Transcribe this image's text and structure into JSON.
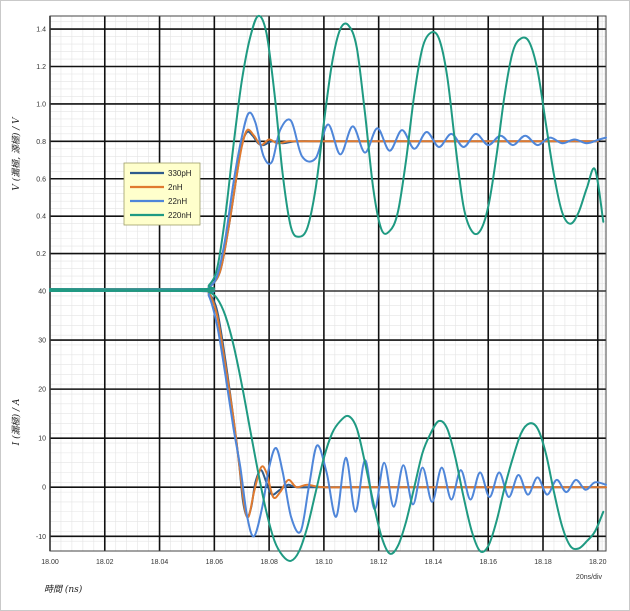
{
  "chart_data": [
    {
      "type": "line",
      "ylabel": "V (漏極, 源極) / V",
      "xlim": [
        18.0,
        18.203
      ],
      "ylim": [
        0,
        1.47
      ],
      "yticks": [
        0.2,
        0.4,
        0.6,
        0.8,
        1.0,
        1.2,
        1.4
      ],
      "ytick_labels": [
        "0.2",
        "0.4",
        "0.6",
        "0.8",
        "1.0",
        "1.2",
        "1.4"
      ],
      "grid": true,
      "legend_position": "center-left",
      "series": [
        {
          "name": "330pH",
          "color": "#2e5b8c",
          "x": [
            18.0,
            18.055,
            18.058,
            18.062,
            18.065,
            18.068,
            18.07,
            18.072,
            18.074,
            18.076,
            18.078,
            18.081,
            18.085,
            18.09,
            18.1,
            18.12,
            18.15,
            18.2
          ],
          "y": [
            0.01,
            0.01,
            0.02,
            0.1,
            0.32,
            0.6,
            0.78,
            0.85,
            0.83,
            0.79,
            0.78,
            0.8,
            0.79,
            0.8,
            0.8,
            0.8,
            0.8,
            0.8
          ]
        },
        {
          "name": "2nH",
          "color": "#e07a2f",
          "x": [
            18.0,
            18.055,
            18.058,
            18.062,
            18.065,
            18.068,
            18.07,
            18.072,
            18.0745,
            18.077,
            18.08,
            18.083,
            18.087,
            18.09,
            18.1,
            18.12,
            18.15,
            18.2
          ],
          "y": [
            0.01,
            0.01,
            0.02,
            0.1,
            0.32,
            0.6,
            0.77,
            0.86,
            0.83,
            0.78,
            0.81,
            0.79,
            0.8,
            0.8,
            0.8,
            0.8,
            0.8,
            0.8
          ]
        },
        {
          "name": "22nH",
          "color": "#4f86d9",
          "x": [
            18.0,
            18.055,
            18.058,
            18.061,
            18.064,
            18.067,
            18.07,
            18.0725,
            18.075,
            18.078,
            18.081,
            18.084,
            18.088,
            18.092,
            18.097,
            18.1015,
            18.106,
            18.1105,
            18.115,
            18.1195,
            18.124,
            18.1285,
            18.133,
            18.1375,
            18.142,
            18.1465,
            18.151,
            18.1555,
            18.16,
            18.1645,
            18.169,
            18.1735,
            18.178,
            18.1825,
            18.187,
            18.1915,
            18.196,
            18.2005,
            18.203
          ],
          "y": [
            0.01,
            0.01,
            0.02,
            0.08,
            0.28,
            0.58,
            0.82,
            0.95,
            0.9,
            0.72,
            0.69,
            0.86,
            0.91,
            0.72,
            0.71,
            0.89,
            0.73,
            0.88,
            0.74,
            0.87,
            0.75,
            0.86,
            0.76,
            0.85,
            0.77,
            0.84,
            0.77,
            0.84,
            0.78,
            0.83,
            0.78,
            0.83,
            0.78,
            0.82,
            0.79,
            0.81,
            0.79,
            0.81,
            0.82
          ]
        },
        {
          "name": "220nH",
          "color": "#1f9a82",
          "x": [
            18.0,
            18.055,
            18.058,
            18.061,
            18.064,
            18.067,
            18.07,
            18.073,
            18.076,
            18.079,
            18.082,
            18.085,
            18.088,
            18.091,
            18.094,
            18.097,
            18.1,
            18.103,
            18.106,
            18.109,
            18.112,
            18.115,
            18.118,
            18.121,
            18.124,
            18.127,
            18.13,
            18.133,
            18.136,
            18.139,
            18.142,
            18.145,
            18.148,
            18.151,
            18.154,
            18.157,
            18.16,
            18.163,
            18.166,
            18.169,
            18.172,
            18.175,
            18.178,
            18.181,
            18.184,
            18.187,
            18.19,
            18.193,
            18.196,
            18.199,
            18.202
          ],
          "y": [
            0.01,
            0.01,
            0.03,
            0.12,
            0.4,
            0.78,
            1.12,
            1.35,
            1.47,
            1.38,
            1.05,
            0.62,
            0.34,
            0.29,
            0.34,
            0.55,
            0.9,
            1.22,
            1.4,
            1.42,
            1.3,
            0.95,
            0.55,
            0.33,
            0.32,
            0.42,
            0.7,
            1.05,
            1.3,
            1.38,
            1.35,
            1.15,
            0.78,
            0.45,
            0.32,
            0.32,
            0.45,
            0.72,
            1.05,
            1.28,
            1.35,
            1.33,
            1.18,
            0.9,
            0.62,
            0.42,
            0.36,
            0.42,
            0.55,
            0.65,
            0.37
          ]
        }
      ]
    },
    {
      "type": "line",
      "ylabel": "I (漏極) / A",
      "xlabel": "時間 (ns)",
      "x_scale_note": "20ns/div",
      "xlim": [
        18.0,
        18.203
      ],
      "ylim": [
        -13,
        40
      ],
      "xticks": [
        18.0,
        18.02,
        18.04,
        18.06,
        18.08,
        18.1,
        18.12,
        18.14,
        18.16,
        18.18,
        18.2
      ],
      "xtick_labels": [
        "18.00",
        "18.02",
        "18.04",
        "18.06",
        "18.08",
        "18.10",
        "18.12",
        "18.14",
        "18.16",
        "18.18",
        "18.20"
      ],
      "yticks": [
        -10,
        0,
        10,
        20,
        30,
        40
      ],
      "ytick_labels": [
        "-10",
        "0",
        "10",
        "20",
        "30",
        "40"
      ],
      "grid": true,
      "series": [
        {
          "name": "330pH",
          "color": "#2e5b8c",
          "x": [
            18.0,
            18.055,
            18.058,
            18.061,
            18.064,
            18.067,
            18.069,
            18.0705,
            18.072,
            18.0735,
            18.075,
            18.077,
            18.079,
            18.081,
            18.084,
            18.087,
            18.09,
            18.1,
            18.12,
            18.15,
            18.203
          ],
          "y": [
            40,
            40,
            39.5,
            36,
            26,
            14,
            5,
            -3,
            -6,
            -4,
            1,
            3.5,
            1,
            -1.5,
            -0.5,
            0.5,
            0,
            0,
            0,
            0,
            0
          ]
        },
        {
          "name": "2nH",
          "color": "#e07a2f",
          "x": [
            18.0,
            18.055,
            18.058,
            18.061,
            18.064,
            18.067,
            18.069,
            18.071,
            18.0725,
            18.0745,
            18.077,
            18.079,
            18.0815,
            18.084,
            18.087,
            18.09,
            18.094,
            18.1,
            18.12,
            18.15,
            18.203
          ],
          "y": [
            40,
            40,
            39.5,
            35,
            25,
            14,
            5,
            -4,
            -6,
            -1,
            4,
            3,
            -2,
            -1,
            1.5,
            0,
            0.5,
            0,
            0,
            0,
            0
          ]
        },
        {
          "name": "22nH",
          "color": "#4f86d9",
          "x": [
            18.0,
            18.055,
            18.058,
            18.061,
            18.064,
            18.067,
            18.0695,
            18.072,
            18.0745,
            18.0775,
            18.08,
            18.0825,
            18.085,
            18.088,
            18.0915,
            18.0945,
            18.0975,
            18.101,
            18.1045,
            18.108,
            18.1115,
            18.115,
            18.1185,
            18.122,
            18.1255,
            18.129,
            18.1325,
            18.136,
            18.1395,
            18.143,
            18.1465,
            18.15,
            18.1535,
            18.157,
            18.1605,
            18.164,
            18.1675,
            18.171,
            18.1745,
            18.178,
            18.1815,
            18.185,
            18.1885,
            18.192,
            18.1955,
            18.199,
            18.203
          ],
          "y": [
            40,
            40,
            39,
            33,
            23,
            12,
            4,
            -6,
            -10,
            -4,
            4,
            8,
            3,
            -6,
            -9,
            0,
            8.5,
            3,
            -6,
            6,
            -5,
            5.5,
            -4.5,
            5,
            -4,
            4.5,
            -3.5,
            4,
            -3,
            4,
            -2.5,
            3.5,
            -2.5,
            3,
            -2,
            3,
            -2,
            2.5,
            -1.5,
            2,
            -1.5,
            1.5,
            -1,
            1.5,
            -0.5,
            1,
            0.5
          ]
        },
        {
          "name": "220nH",
          "color": "#1f9a82",
          "x": [
            18.0,
            18.055,
            18.058,
            18.061,
            18.064,
            18.067,
            18.07,
            18.073,
            18.076,
            18.079,
            18.082,
            18.085,
            18.088,
            18.091,
            18.094,
            18.097,
            18.1,
            18.103,
            18.106,
            18.109,
            18.112,
            18.115,
            18.118,
            18.121,
            18.124,
            18.127,
            18.13,
            18.133,
            18.136,
            18.139,
            18.142,
            18.145,
            18.148,
            18.151,
            18.154,
            18.157,
            18.16,
            18.163,
            18.166,
            18.169,
            18.172,
            18.175,
            18.178,
            18.181,
            18.184,
            18.187,
            18.19,
            18.193,
            18.196,
            18.199,
            18.202
          ],
          "y": [
            40,
            40,
            39.8,
            38.5,
            35,
            29,
            21,
            12,
            3,
            -5,
            -11,
            -14,
            -15,
            -13,
            -8,
            -1,
            6,
            11,
            13.5,
            14.5,
            12,
            5,
            -3,
            -10,
            -13.5,
            -12,
            -7,
            0,
            7,
            11,
            13.5,
            12,
            6,
            -2,
            -9,
            -13,
            -12,
            -7,
            0,
            6,
            11,
            13,
            12,
            7,
            -1,
            -8,
            -12,
            -12.5,
            -11,
            -9,
            -5
          ]
        }
      ]
    }
  ]
}
